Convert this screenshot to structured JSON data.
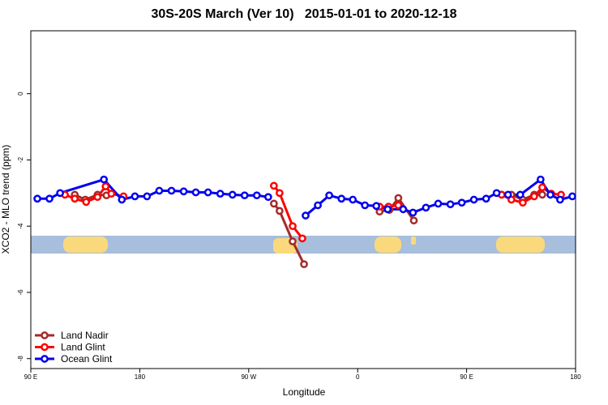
{
  "chart_data": {
    "type": "line",
    "title": "30S-20S March (Ver 10)   2015-01-01 to 2020-12-18",
    "x_label": "Longitude",
    "y_label": "XCO2 - MLO trend (ppm)",
    "xlim": [
      90,
      540
    ],
    "ylim": [
      -8.3,
      1.9
    ],
    "xticks": [
      {
        "value": 90,
        "label": "90 E"
      },
      180,
      {
        "value": 270,
        "label": "90 W"
      },
      {
        "value": 360,
        "label": "0"
      },
      {
        "value": 450,
        "label": "90 E"
      },
      {
        "value": 540,
        "label": "180"
      }
    ],
    "yticks": [
      -8,
      -6,
      -4,
      -2,
      0
    ],
    "legend": "lower left",
    "series": [
      {
        "name": "Land Nadir",
        "color": "#a52a2a",
        "x": [
          126.3,
          135,
          145.1,
          152.5,
          null,
          290.8,
          295.5,
          306.3,
          315.7,
          null,
          378.1,
          386.2,
          393.6,
          406.4,
          null,
          478.9,
          487,
          496.4,
          505.8,
          512.5
        ],
        "values": [
          -3.05,
          -3.2,
          -3.05,
          -3.07,
          null,
          -3.32,
          -3.54,
          -4.46,
          -5.15,
          null,
          -3.56,
          -3.51,
          -3.15,
          -3.83,
          null,
          -3.05,
          -3.05,
          -3.2,
          -3.05,
          -3.05
        ]
      },
      {
        "name": "Land Glint",
        "color": "#ff0000",
        "x": [
          118.2,
          126.3,
          135.7,
          145.1,
          151.8,
          156.5,
          166.6,
          null,
          290.8,
          295.5,
          306.3,
          314.3,
          null,
          378.1,
          385.5,
          393.6,
          null,
          478.9,
          487,
          496.4,
          505.8,
          512.5,
          519.9,
          528
        ],
        "values": [
          -3.05,
          -3.17,
          -3.27,
          -3.12,
          -2.8,
          -3.02,
          -3.1,
          null,
          -2.78,
          -3.0,
          -4.0,
          -4.37,
          null,
          -3.41,
          -3.41,
          -3.37,
          null,
          -3.05,
          -3.2,
          -3.29,
          -3.1,
          -2.83,
          -3.02,
          -3.05
        ]
      },
      {
        "name": "Ocean Glint",
        "color": "#0000ee",
        "x": [
          95.4,
          105.4,
          114.2,
          150.4,
          165.2,
          176,
          186,
          196.1,
          206.2,
          216.3,
          226.3,
          236.4,
          246.5,
          256.6,
          266.6,
          276.7,
          286.1,
          null,
          317,
          327.1,
          336.5,
          346.6,
          356,
          366,
          375.4,
          384.8,
          397.6,
          405.7,
          416.4,
          426.5,
          436.6,
          446,
          456,
          466.1,
          474.8,
          484.2,
          494.3,
          511.1,
          519.2,
          527.2,
          537.3
        ],
        "values": [
          -3.17,
          -3.17,
          -3.0,
          -2.59,
          -3.2,
          -3.1,
          -3.1,
          -2.93,
          -2.93,
          -2.95,
          -2.98,
          -2.98,
          -3.02,
          -3.05,
          -3.07,
          -3.07,
          -3.12,
          null,
          -3.68,
          -3.37,
          -3.07,
          -3.17,
          -3.2,
          -3.37,
          -3.39,
          -3.49,
          -3.49,
          -3.59,
          -3.44,
          -3.32,
          -3.34,
          -3.29,
          -3.2,
          -3.17,
          -3.0,
          -3.05,
          -3.05,
          -2.59,
          -3.05,
          -3.2,
          -3.1
        ]
      }
    ]
  }
}
